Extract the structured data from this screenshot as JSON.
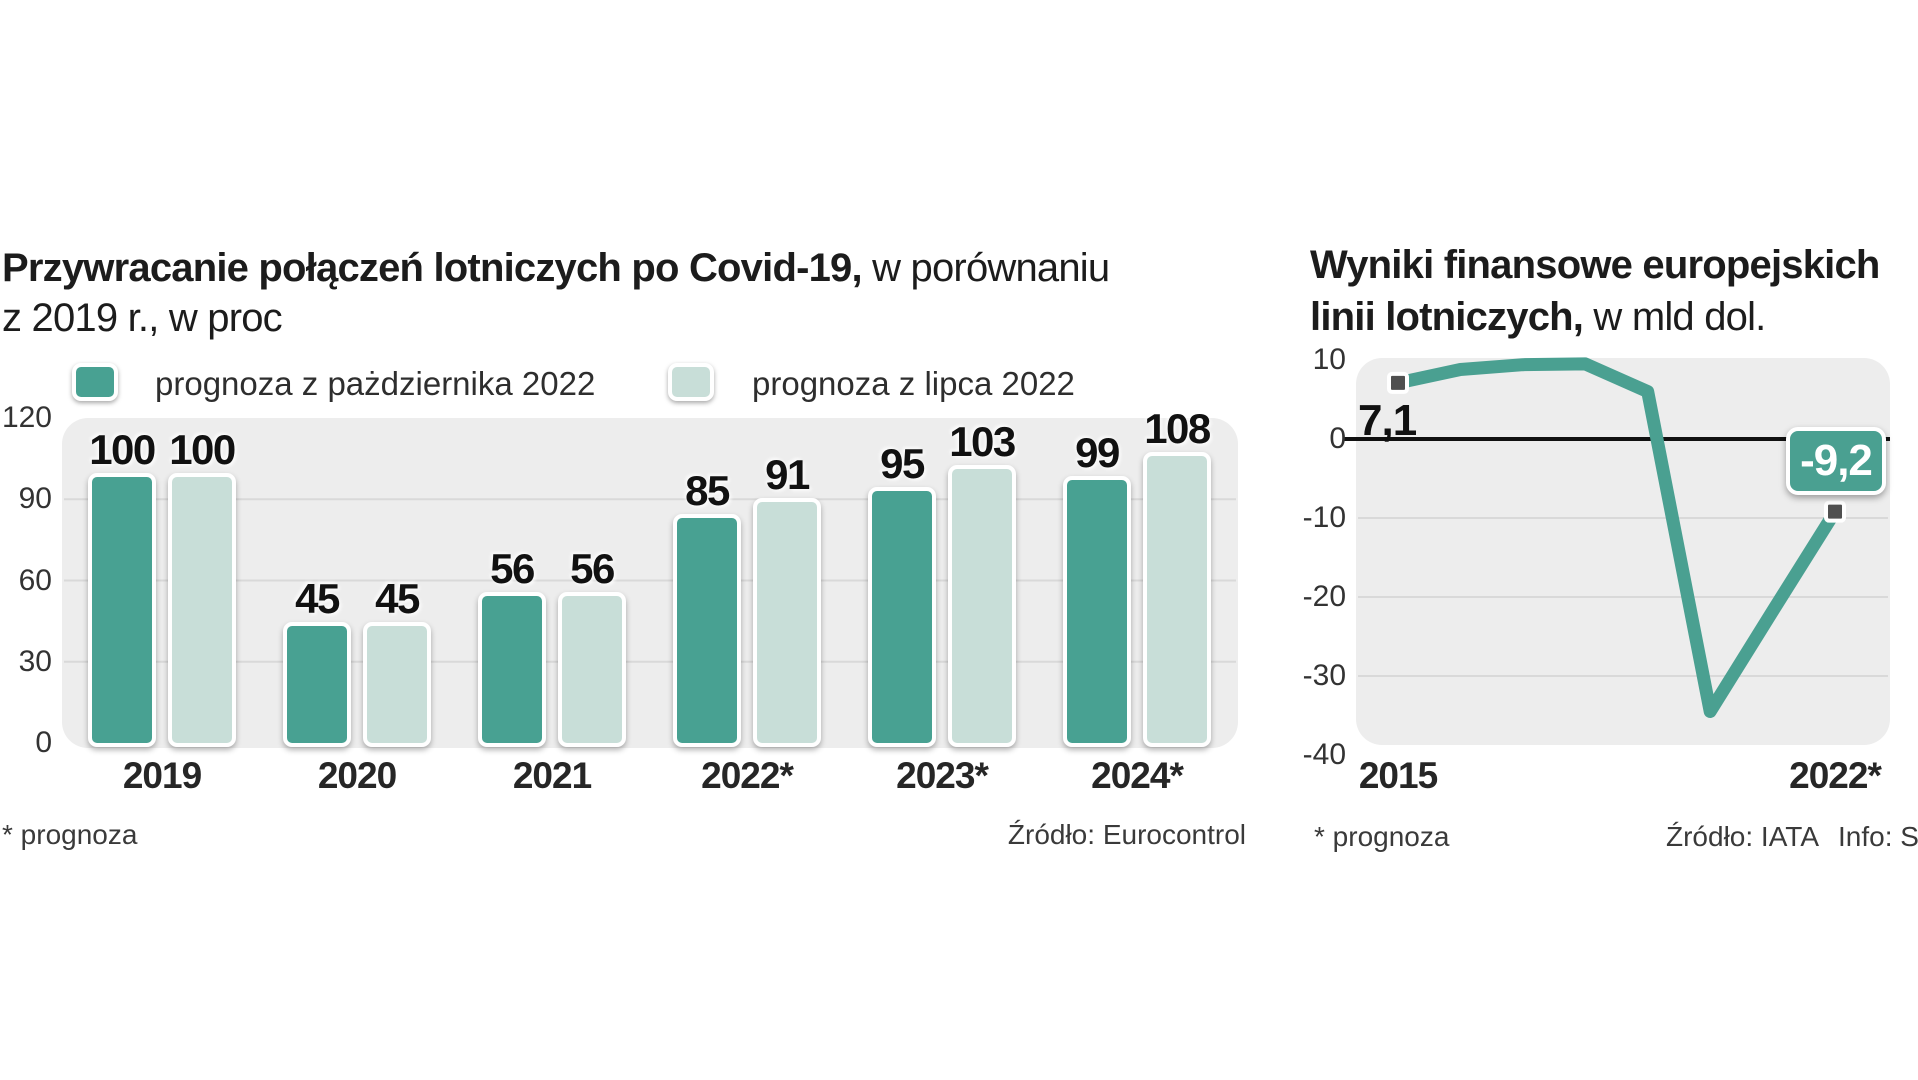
{
  "left": {
    "title_bold": "Przywracanie połączeń lotniczych po Covid-19,",
    "title_rest": " w porównaniu",
    "subtitle": "z 2019 r., w proc",
    "legend_1": "prognoza z pażdziernika 2022",
    "legend_2": "prognoza z lipca 2022",
    "footnote": "* prognoza",
    "source": "Źródło: Eurocontrol"
  },
  "right": {
    "title_bold_1": "Wyniki finansowe europejskich",
    "title_bold_2": "linii lotniczych,",
    "title_rest_2": " w mld dol.",
    "label_start": "7,1",
    "label_end": "-9,2",
    "footnote": "* prognoza",
    "source": "Źródło: IATA",
    "info": "Info: S"
  },
  "colors": {
    "dark_teal": "#48a192",
    "light_teal": "#c8ded8",
    "plot_bg": "#ededed",
    "gridline": "#d9d9d9",
    "zero_line": "#111111",
    "line": "#4aa091",
    "marker": "#4f4f4f"
  },
  "chart_data": [
    {
      "type": "bar",
      "title": "Przywracanie połączeń lotniczych po Covid-19, w porównaniu z 2019 r., w proc",
      "categories": [
        "2019",
        "2020",
        "2021",
        "2022*",
        "2023*",
        "2024*"
      ],
      "series": [
        {
          "name": "prognoza z pażdziernika 2022",
          "color": "#48a192",
          "values": [
            100,
            45,
            56,
            85,
            95,
            99
          ]
        },
        {
          "name": "prognoza z lipca 2022",
          "color": "#c8ded8",
          "values": [
            100,
            45,
            56,
            91,
            103,
            108
          ]
        }
      ],
      "ylim": [
        0,
        120
      ],
      "yticks": [
        120,
        90,
        60,
        30,
        0
      ],
      "grid": "horizontal",
      "legend_position": "top",
      "source": "Źródło: Eurocontrol",
      "note": "* prognoza"
    },
    {
      "type": "line",
      "title": "Wyniki finansowe europejskich linii lotniczych, w mld dol.",
      "x": [
        2015,
        2016,
        2017,
        2018,
        2019,
        2020,
        2021,
        2022
      ],
      "values": [
        7.1,
        8.8,
        9.4,
        9.5,
        6.0,
        -34.5,
        -21.8,
        -9.2
      ],
      "labeled_points": [
        {
          "x": 2015,
          "label": "7,1"
        },
        {
          "x": 2022,
          "label": "-9,2"
        }
      ],
      "xtick_labels": [
        "2015",
        "2022*"
      ],
      "yticks": [
        10,
        0,
        -10,
        -20,
        -30,
        -40
      ],
      "ylim": [
        -40,
        10
      ],
      "grid": "horizontal",
      "source": "Źródło: IATA",
      "note": "* prognoza"
    }
  ]
}
